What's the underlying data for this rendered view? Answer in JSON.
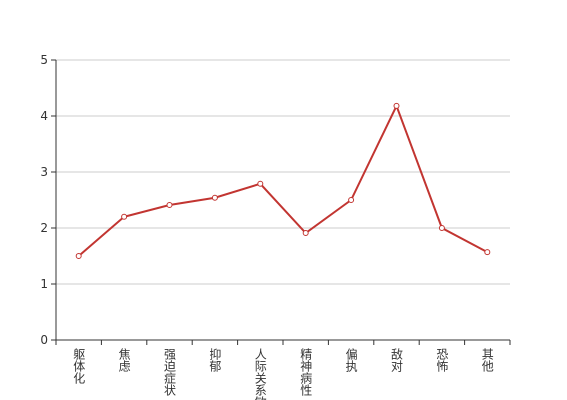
{
  "chart_data": {
    "type": "line",
    "categories": [
      "躯体化",
      "焦虑",
      "强迫症状",
      "抑郁",
      "人际关系敏感",
      "精神病性",
      "偏执",
      "敌对",
      "恐怖",
      "其他"
    ],
    "series": [
      {
        "name": "",
        "color": "#c23531",
        "values": [
          1.5,
          2.2,
          2.41,
          2.54,
          2.79,
          1.91,
          2.5,
          4.18,
          2.0,
          1.57
        ]
      }
    ],
    "ylim": [
      0,
      5
    ],
    "yticks": [
      0,
      1,
      2,
      3,
      4,
      5
    ],
    "grid": true
  }
}
